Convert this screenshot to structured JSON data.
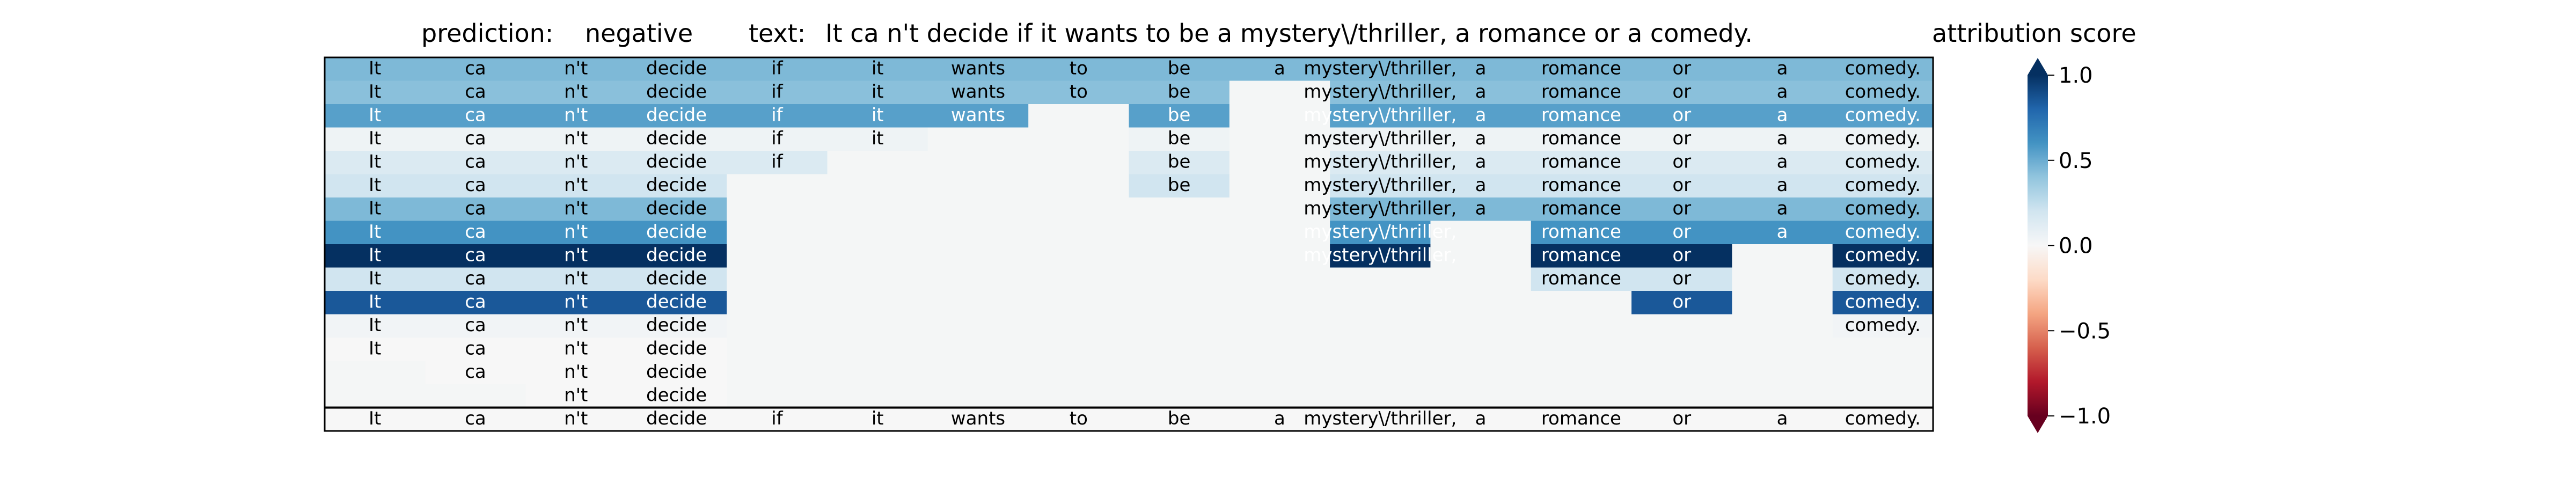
{
  "header": {
    "prediction_label": "prediction:",
    "prediction_value": "negative",
    "text_label": "text:",
    "text_value": "It ca n't decide if it wants to be a mystery\\/thriller, a romance or a comedy."
  },
  "colorbar": {
    "title": "attribution score",
    "ticks": [
      "1.0",
      "0.5",
      "0.0",
      "−0.5",
      "−1.0"
    ],
    "tick_values": [
      1.0,
      0.5,
      0.0,
      -0.5,
      -1.0
    ],
    "range": [
      -1.0,
      1.0
    ],
    "colormap": "RdBu",
    "extend": "both"
  },
  "chart_data": {
    "type": "heatmap",
    "title": "",
    "tokens": [
      "It",
      "ca",
      "n't",
      "decide",
      "if",
      "it",
      "wants",
      "to",
      "be",
      "a",
      "mystery\\/thriller,",
      "a",
      "romance",
      "or",
      "a",
      "comedy."
    ],
    "background_color": "#f4f6f6",
    "rows": [
      {
        "present": [
          1,
          1,
          1,
          1,
          1,
          1,
          1,
          1,
          1,
          1,
          1,
          1,
          1,
          1,
          1,
          1
        ],
        "score": 0.45
      },
      {
        "present": [
          1,
          1,
          1,
          1,
          1,
          1,
          1,
          1,
          1,
          0,
          1,
          1,
          1,
          1,
          1,
          1
        ],
        "score": 0.42
      },
      {
        "present": [
          1,
          1,
          1,
          1,
          1,
          1,
          1,
          0,
          1,
          0,
          1,
          1,
          1,
          1,
          1,
          1
        ],
        "score": 0.55
      },
      {
        "present": [
          1,
          1,
          1,
          1,
          1,
          1,
          0,
          0,
          1,
          0,
          1,
          1,
          1,
          1,
          1,
          1
        ],
        "score": 0.05
      },
      {
        "present": [
          1,
          1,
          1,
          1,
          1,
          0,
          0,
          0,
          1,
          0,
          1,
          1,
          1,
          1,
          1,
          1
        ],
        "score": 0.15
      },
      {
        "present": [
          1,
          1,
          1,
          1,
          0,
          0,
          0,
          0,
          1,
          0,
          1,
          1,
          1,
          1,
          1,
          1
        ],
        "score": 0.2
      },
      {
        "present": [
          1,
          1,
          1,
          1,
          0,
          0,
          0,
          0,
          0,
          0,
          1,
          1,
          1,
          1,
          1,
          1
        ],
        "score": 0.45
      },
      {
        "present": [
          1,
          1,
          1,
          1,
          0,
          0,
          0,
          0,
          0,
          0,
          1,
          0,
          1,
          1,
          1,
          1
        ],
        "score": 0.6
      },
      {
        "present": [
          1,
          1,
          1,
          1,
          0,
          0,
          0,
          0,
          0,
          0,
          1,
          0,
          1,
          1,
          0,
          1
        ],
        "score": 1.0
      },
      {
        "present": [
          1,
          1,
          1,
          1,
          0,
          0,
          0,
          0,
          0,
          0,
          0,
          0,
          1,
          1,
          0,
          1
        ],
        "score": 0.2
      },
      {
        "present": [
          1,
          1,
          1,
          1,
          0,
          0,
          0,
          0,
          0,
          0,
          0,
          0,
          0,
          1,
          0,
          1
        ],
        "score": 0.85
      },
      {
        "present": [
          1,
          1,
          1,
          1,
          0,
          0,
          0,
          0,
          0,
          0,
          0,
          0,
          0,
          0,
          0,
          1
        ],
        "score": 0.03
      },
      {
        "present": [
          1,
          1,
          1,
          1,
          0,
          0,
          0,
          0,
          0,
          0,
          0,
          0,
          0,
          0,
          0,
          0
        ],
        "score": 0.0
      },
      {
        "present": [
          0,
          1,
          1,
          1,
          0,
          0,
          0,
          0,
          0,
          0,
          0,
          0,
          0,
          0,
          0,
          0
        ],
        "score": 0.0
      },
      {
        "present": [
          0,
          0,
          1,
          1,
          0,
          0,
          0,
          0,
          0,
          0,
          0,
          0,
          0,
          0,
          0,
          0
        ],
        "score": 0.0
      },
      {
        "present": [
          1,
          1,
          1,
          1,
          1,
          1,
          1,
          1,
          1,
          1,
          1,
          1,
          1,
          1,
          1,
          1
        ],
        "score": 0.0
      }
    ]
  }
}
